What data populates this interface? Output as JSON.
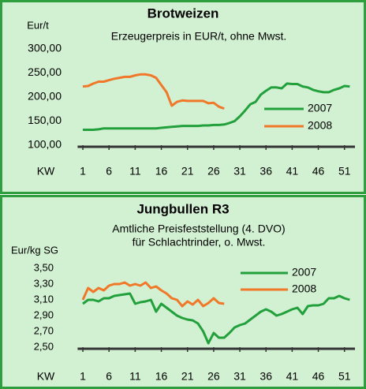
{
  "chart_data": [
    {
      "type": "line",
      "title": "Brotweizen",
      "subtitle": [
        "Erzeugerpreis in EUR/t, ohne Mwst."
      ],
      "y_label": "Eur/t",
      "x_label": "KW",
      "x": [
        1,
        2,
        3,
        4,
        5,
        6,
        7,
        8,
        9,
        10,
        11,
        12,
        13,
        14,
        15,
        16,
        17,
        18,
        19,
        20,
        21,
        22,
        23,
        24,
        25,
        26,
        27,
        28,
        29,
        30,
        31,
        32,
        33,
        34,
        35,
        36,
        37,
        38,
        39,
        40,
        41,
        42,
        43,
        44,
        45,
        46,
        47,
        48,
        49,
        50,
        51,
        52
      ],
      "xlim": [
        0,
        53
      ],
      "xticks": [
        1,
        6,
        11,
        16,
        21,
        26,
        31,
        36,
        41,
        46,
        51
      ],
      "ylim": [
        100,
        300
      ],
      "yticks": [
        {
          "value": 100,
          "label": "100,00"
        },
        {
          "value": 150,
          "label": "150,00"
        },
        {
          "value": 200,
          "label": "200,00"
        },
        {
          "value": 250,
          "label": "250,00"
        },
        {
          "value": 300,
          "label": "300,00"
        }
      ],
      "grid": false,
      "series": [
        {
          "name": "2007",
          "color": "#22a03c",
          "values": [
            132,
            132,
            132,
            133,
            135,
            135,
            135,
            135,
            135,
            135,
            135,
            135,
            135,
            135,
            135,
            136,
            137,
            138,
            139,
            140,
            140,
            140,
            140,
            141,
            141,
            142,
            142,
            143,
            146,
            150,
            160,
            172,
            185,
            190,
            205,
            213,
            220,
            220,
            218,
            228,
            227,
            227,
            222,
            220,
            215,
            212,
            210,
            210,
            215,
            218,
            223,
            222
          ]
        },
        {
          "name": "2008",
          "color": "#f07828",
          "values": [
            222,
            223,
            228,
            232,
            232,
            235,
            238,
            240,
            242,
            242,
            245,
            247,
            247,
            245,
            240,
            225,
            210,
            182,
            190,
            193,
            192,
            192,
            192,
            192,
            187,
            188,
            180,
            176,
            null,
            null,
            null,
            null,
            null,
            null,
            null,
            null,
            null,
            null,
            null,
            null,
            null,
            null,
            null,
            null,
            null,
            null,
            null,
            null,
            null,
            null,
            null,
            null
          ]
        }
      ]
    },
    {
      "type": "line",
      "title": "Jungbullen R3",
      "subtitle": [
        "Amtliche Preisfeststellung  (4. DVO)",
        "für Schlachtrinder, o. Mwst."
      ],
      "y_label": "Eur/kg SG",
      "x_label": "KW",
      "x": [
        1,
        2,
        3,
        4,
        5,
        6,
        7,
        8,
        9,
        10,
        11,
        12,
        13,
        14,
        15,
        16,
        17,
        18,
        19,
        20,
        21,
        22,
        23,
        24,
        25,
        26,
        27,
        28,
        29,
        30,
        31,
        32,
        33,
        34,
        35,
        36,
        37,
        38,
        39,
        40,
        41,
        42,
        43,
        44,
        45,
        46,
        47,
        48,
        49,
        50,
        51,
        52
      ],
      "xlim": [
        0,
        53
      ],
      "xticks": [
        1,
        6,
        11,
        16,
        21,
        26,
        31,
        36,
        41,
        46,
        51
      ],
      "ylim": [
        2.5,
        3.5
      ],
      "yticks": [
        {
          "value": 2.5,
          "label": "2,50"
        },
        {
          "value": 2.7,
          "label": "2,70"
        },
        {
          "value": 2.9,
          "label": "2,90"
        },
        {
          "value": 3.1,
          "label": "3,10"
        },
        {
          "value": 3.3,
          "label": "3,30"
        },
        {
          "value": 3.5,
          "label": "3,50"
        }
      ],
      "grid": false,
      "series": [
        {
          "name": "2007",
          "color": "#22a03c",
          "values": [
            3.05,
            3.1,
            3.1,
            3.08,
            3.12,
            3.12,
            3.15,
            3.16,
            3.17,
            3.18,
            3.05,
            3.07,
            3.08,
            3.1,
            2.95,
            3.05,
            3.0,
            2.95,
            2.9,
            2.87,
            2.85,
            2.84,
            2.8,
            2.7,
            2.55,
            2.68,
            2.62,
            2.62,
            2.68,
            2.75,
            2.78,
            2.8,
            2.85,
            2.9,
            2.95,
            2.98,
            2.95,
            2.9,
            2.92,
            2.95,
            2.98,
            3.0,
            2.92,
            3.02,
            3.03,
            3.03,
            3.05,
            3.12,
            3.12,
            3.15,
            3.12,
            3.1
          ]
        },
        {
          "name": "2008",
          "color": "#f07828",
          "values": [
            3.1,
            3.25,
            3.2,
            3.25,
            3.22,
            3.28,
            3.3,
            3.3,
            3.32,
            3.28,
            3.3,
            3.28,
            3.32,
            3.25,
            3.27,
            3.22,
            3.18,
            3.12,
            3.1,
            3.02,
            3.08,
            3.04,
            3.1,
            3.02,
            3.06,
            3.12,
            3.06,
            3.05,
            null,
            null,
            null,
            null,
            null,
            null,
            null,
            null,
            null,
            null,
            null,
            null,
            null,
            null,
            null,
            null,
            null,
            null,
            null,
            null,
            null,
            null,
            null,
            null
          ]
        }
      ]
    }
  ]
}
